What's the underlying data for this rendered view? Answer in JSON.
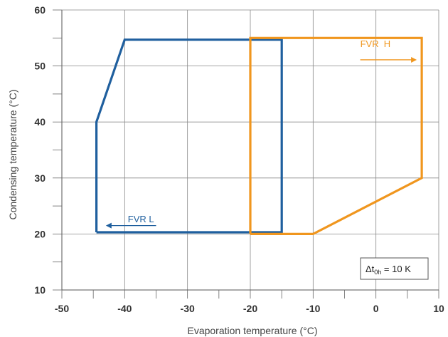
{
  "chart_data": {
    "type": "line",
    "title": "",
    "xlabel": "Evaporation temperature (°C)",
    "ylabel": "Condensing temperature (°C)",
    "xlim": [
      -50,
      10
    ],
    "ylim": [
      10,
      60
    ],
    "xticks": [
      -50,
      -40,
      -30,
      -20,
      -10,
      0,
      10
    ],
    "yticks": [
      10,
      20,
      30,
      40,
      50,
      60
    ],
    "x_minor_step": 5,
    "y_minor_step": 5,
    "grid": true,
    "series": [
      {
        "name": "FVR L",
        "color": "#1f5f9e",
        "arrow": "left",
        "closed": true,
        "points": [
          [
            -44.5,
            20.3
          ],
          [
            -15,
            20.3
          ],
          [
            -15,
            54.7
          ],
          [
            -40,
            54.7
          ],
          [
            -44.5,
            40
          ],
          [
            -44.5,
            20.3
          ]
        ]
      },
      {
        "name": "FVR  H",
        "color": "#f0961e",
        "arrow": "right",
        "closed": true,
        "points": [
          [
            -20,
            20
          ],
          [
            -10,
            20
          ],
          [
            7.3,
            30
          ],
          [
            7.3,
            55
          ],
          [
            -20,
            55
          ],
          [
            -20,
            20
          ]
        ]
      }
    ],
    "annotation": {
      "prefix": "Δt",
      "subscript": "0h",
      "suffix": " = 10 K"
    }
  }
}
